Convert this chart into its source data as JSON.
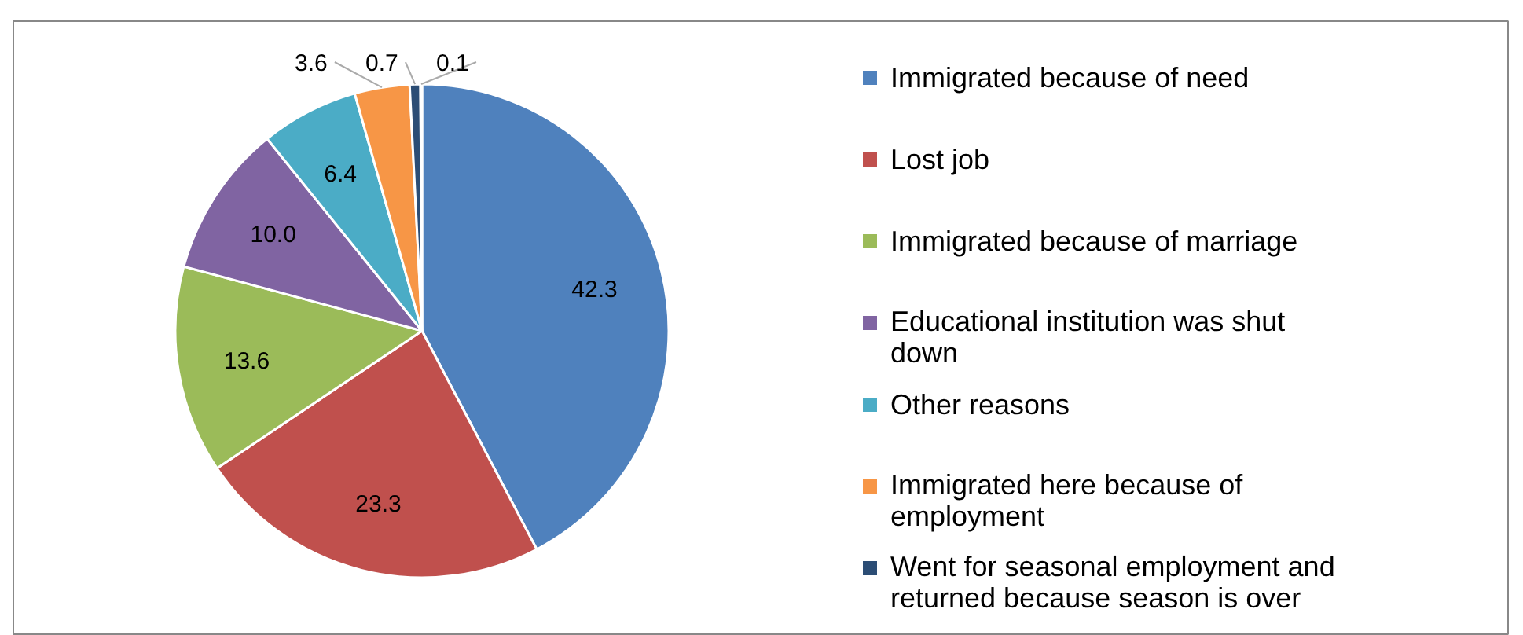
{
  "chart_data": {
    "type": "pie",
    "categories": [
      "Immigrated because of need",
      "Lost job",
      "Immigrated because of marriage",
      "Educational institution was  shut down",
      "Other reasons",
      "Immigrated here because of employment",
      "Went for seasonal employment and returned because season is over",
      null
    ],
    "values": [
      42.3,
      23.3,
      13.6,
      10.0,
      6.4,
      3.6,
      0.7,
      0.1
    ],
    "colors": [
      "#4f81bd",
      "#c0504d",
      "#9bbb59",
      "#8064a2",
      "#4bacc6",
      "#f79646",
      "#2c4d75",
      "#772c2a"
    ],
    "value_labels": [
      "42.3",
      "23.3",
      "13.6",
      "10.0",
      "6.4",
      "3.6",
      "0.7",
      "0.1"
    ],
    "legend": "right"
  }
}
